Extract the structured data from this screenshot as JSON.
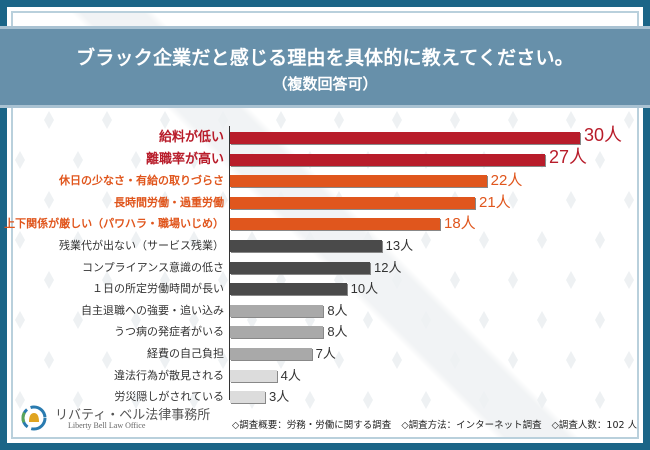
{
  "header": {
    "title": "ブラック企業だと感じる理由を具体的に教えてください。",
    "subtitle": "（複数回答可）"
  },
  "colors": {
    "frame": "#1b6587",
    "title_band": "#6790aa",
    "tier1": "#b81c2a",
    "tier2": "#e0561d",
    "tier3": "#4a4a4a",
    "tier4": "#a9a9a9",
    "tier5": "#dcdcdc"
  },
  "chart_data": {
    "type": "bar",
    "orientation": "horizontal",
    "title": "ブラック企業だと感じる理由を具体的に教えてください。",
    "subtitle": "（複数回答可）",
    "unit": "人",
    "xlim": [
      0,
      30
    ],
    "grid": false,
    "categories": [
      "給料が低い",
      "離職率が高い",
      "休日の少なさ・有給の取りづらさ",
      "長時間労働・過重労働",
      "上下関係が厳しい（パワハラ・職場いじめ）",
      "残業代が出ない（サービス残業）",
      "コンプライアンス意識の低さ",
      "１日の所定労働時間が長い",
      "自主退職への強要・追い込み",
      "うつ病の発症者がいる",
      "経費の自己負担",
      "違法行為が散見される",
      "労災隠しがされている"
    ],
    "values": [
      30,
      27,
      22,
      21,
      18,
      13,
      12,
      10,
      8,
      8,
      7,
      4,
      3
    ],
    "value_labels": [
      "30人",
      "27人",
      "22人",
      "21人",
      "18人",
      "13人",
      "12人",
      "10人",
      "8人",
      "8人",
      "7人",
      "4人",
      "3人"
    ],
    "tiers": [
      1,
      1,
      2,
      2,
      2,
      3,
      3,
      3,
      4,
      4,
      4,
      5,
      5
    ]
  },
  "footer": {
    "logo_name": "リバティ・ベル法律事務所",
    "logo_name_en": "Liberty Bell Law Office",
    "notes": [
      "◇調査概要：労務・労働に関する調査",
      "◇調査方法：インターネット調査",
      "◇調査人数：102 人"
    ]
  }
}
